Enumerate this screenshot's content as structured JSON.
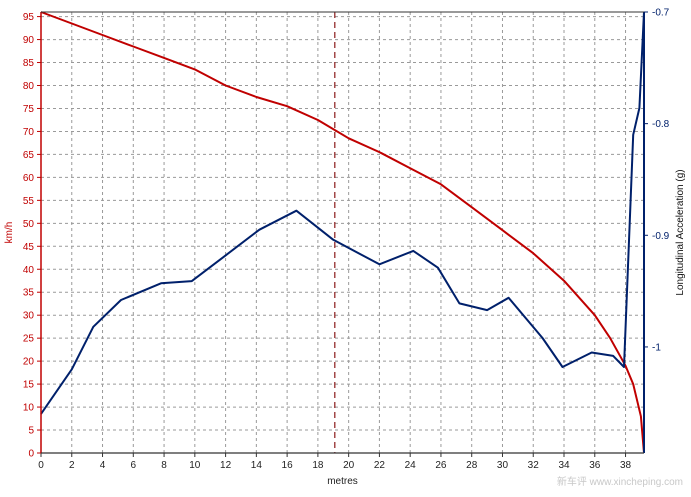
{
  "chart_data": {
    "type": "line",
    "xlabel": "metres",
    "ylabel_left": "km/h",
    "ylabel_right": "Longitudinal Acceleration (g)",
    "xlim": [
      0,
      39.2
    ],
    "ylim_left": [
      0,
      96
    ],
    "ylim_right": [
      -1.095,
      -0.7
    ],
    "x_ticks": [
      0,
      2,
      4,
      6,
      8,
      10,
      12,
      14,
      16,
      18,
      20,
      22,
      24,
      26,
      28,
      30,
      32,
      34,
      36,
      38
    ],
    "y_ticks_left": [
      0,
      5,
      10,
      15,
      20,
      25,
      30,
      35,
      40,
      45,
      50,
      55,
      60,
      65,
      70,
      75,
      80,
      85,
      90,
      95
    ],
    "y_ticks_right": [
      -0.7,
      -0.8,
      -0.9,
      -1
    ],
    "grid": true,
    "marker_x": 19.1,
    "series": [
      {
        "axis": "left",
        "color": "#c00000",
        "points": [
          [
            0,
            96
          ],
          [
            2,
            93.5
          ],
          [
            4,
            91
          ],
          [
            6,
            88.5
          ],
          [
            8,
            86
          ],
          [
            10,
            83.5
          ],
          [
            12,
            80
          ],
          [
            14,
            77.5
          ],
          [
            16,
            75.5
          ],
          [
            18,
            72.5
          ],
          [
            20,
            68.5
          ],
          [
            22,
            65.5
          ],
          [
            24,
            62
          ],
          [
            26,
            58.5
          ],
          [
            28,
            53.5
          ],
          [
            30,
            48.5
          ],
          [
            32,
            43.5
          ],
          [
            34,
            37.5
          ],
          [
            36,
            30
          ],
          [
            37,
            25
          ],
          [
            38,
            19
          ],
          [
            38.5,
            15
          ],
          [
            39,
            8
          ],
          [
            39.2,
            0
          ]
        ]
      },
      {
        "axis": "right",
        "color": "#00206b",
        "points": [
          [
            0,
            -1.06
          ],
          [
            2,
            -1.02
          ],
          [
            3.4,
            -0.982
          ],
          [
            5.2,
            -0.958
          ],
          [
            7.8,
            -0.943
          ],
          [
            9.8,
            -0.941
          ],
          [
            12,
            -0.918
          ],
          [
            14.2,
            -0.895
          ],
          [
            16.6,
            -0.878
          ],
          [
            19,
            -0.904
          ],
          [
            22,
            -0.926
          ],
          [
            24.2,
            -0.914
          ],
          [
            25.8,
            -0.929
          ],
          [
            27.2,
            -0.961
          ],
          [
            29,
            -0.967
          ],
          [
            30.4,
            -0.956
          ],
          [
            32.6,
            -0.992
          ],
          [
            33.9,
            -1.018
          ],
          [
            35.8,
            -1.005
          ],
          [
            37.2,
            -1.008
          ],
          [
            37.9,
            -1.018
          ],
          [
            38.5,
            -0.81
          ],
          [
            38.9,
            -0.786
          ],
          [
            39.2,
            -0.7
          ]
        ]
      }
    ]
  },
  "watermark": "新车评 www.xincheping.com"
}
